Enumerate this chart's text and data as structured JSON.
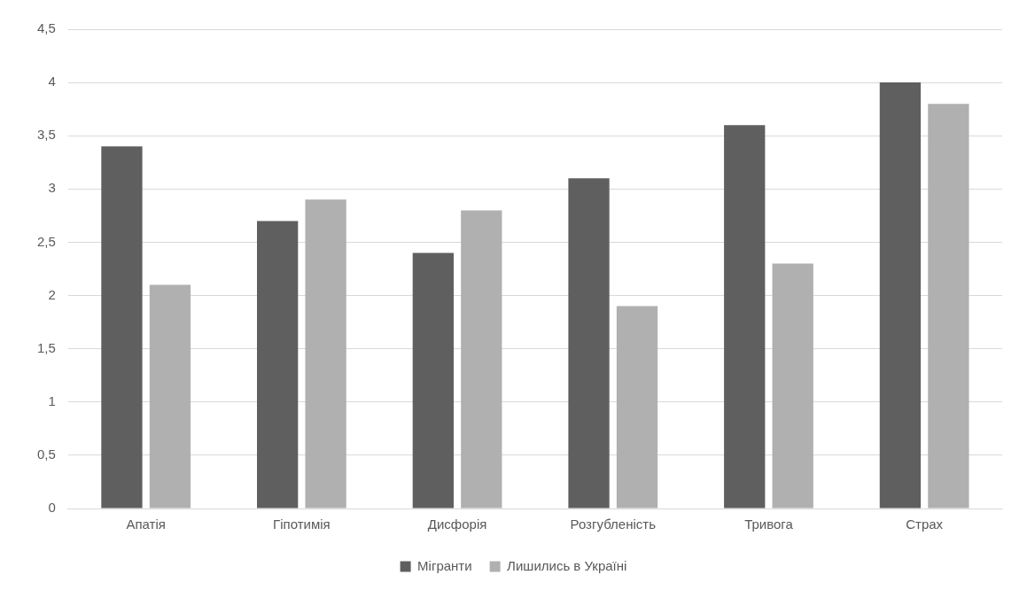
{
  "chart_data": {
    "type": "bar",
    "categories": [
      "Апатія",
      "Гіпотимія",
      "Дисфорія",
      "Розгубленість",
      "Тривога",
      "Страх"
    ],
    "series": [
      {
        "name": "Мігранти",
        "color": "#5f5f5f",
        "values": [
          3.4,
          2.7,
          2.4,
          3.1,
          3.6,
          4.0
        ]
      },
      {
        "name": "Лишились в Україні",
        "color": "#b0b0b0",
        "values": [
          2.1,
          2.9,
          2.8,
          1.9,
          2.3,
          3.8
        ]
      }
    ],
    "ylim": [
      0,
      4.5
    ],
    "yticks": [
      {
        "value": 0,
        "label": "0"
      },
      {
        "value": 0.5,
        "label": "0,5"
      },
      {
        "value": 1,
        "label": "1"
      },
      {
        "value": 1.5,
        "label": "1,5"
      },
      {
        "value": 2,
        "label": "2"
      },
      {
        "value": 2.5,
        "label": "2,5"
      },
      {
        "value": 3,
        "label": "3"
      },
      {
        "value": 3.5,
        "label": "3,5"
      },
      {
        "value": 4,
        "label": "4"
      },
      {
        "value": 4.5,
        "label": "4,5"
      }
    ],
    "grid": "y",
    "legend": "bottom"
  }
}
